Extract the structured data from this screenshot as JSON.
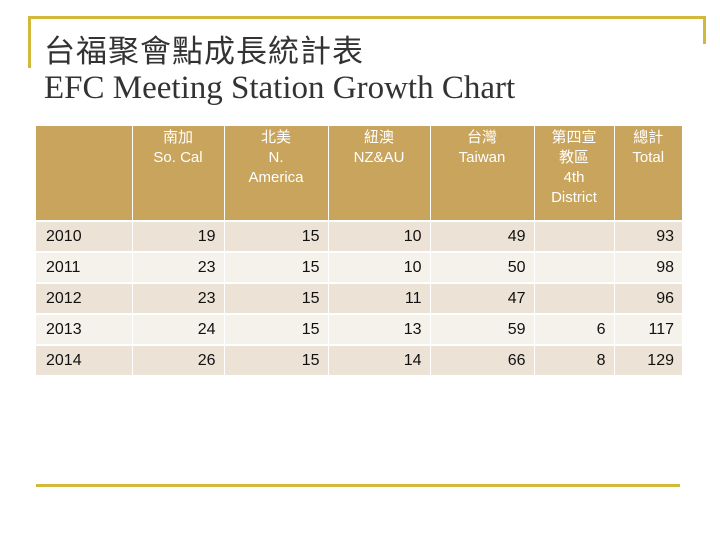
{
  "title_zh": "台福聚會點成長統計表",
  "title_en": "EFC Meeting Station Growth Chart",
  "columns": [
    {
      "zh": "",
      "en": ""
    },
    {
      "zh": "南加",
      "en": "So. Cal"
    },
    {
      "zh": "北美",
      "en": "N. America"
    },
    {
      "zh": "紐澳",
      "en": "NZ&AU"
    },
    {
      "zh": "台灣",
      "en": "Taiwan"
    },
    {
      "zh": "第四宣教區",
      "en": "4th District"
    },
    {
      "zh": "總計",
      "en": "Total"
    }
  ],
  "rows": [
    [
      "2010",
      "19",
      "15",
      "10",
      "49",
      "",
      "93"
    ],
    [
      "2011",
      "23",
      "15",
      "10",
      "50",
      "",
      "98"
    ],
    [
      "2012",
      "23",
      "15",
      "11",
      "47",
      "",
      "96"
    ],
    [
      "2013",
      "24",
      "15",
      "13",
      "59",
      "6",
      "117"
    ],
    [
      "2014",
      "26",
      "15",
      "14",
      "66",
      "8",
      "129"
    ]
  ],
  "colors": {
    "frame": "#d4b83c",
    "header_bg": "#c8a45c",
    "row_odd": "#ece3d6",
    "row_even": "#f5f1eb"
  }
}
